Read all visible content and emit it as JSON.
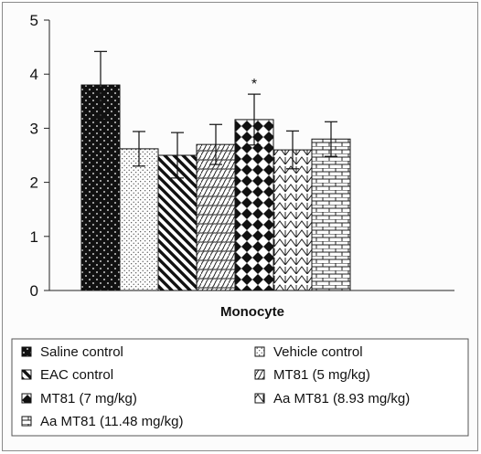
{
  "chart_data": {
    "type": "bar",
    "xlabel": "Monocyte",
    "ylabel": "",
    "ylim": [
      0,
      5
    ],
    "yticks": [
      "0",
      "1",
      "2",
      "3",
      "4",
      "5"
    ],
    "legend_position": "bottom",
    "series": [
      {
        "name": "Saline control",
        "value": 3.8,
        "error": 0.62,
        "pattern": "black-dots"
      },
      {
        "name": "Vehicle control",
        "value": 2.62,
        "error": 0.32,
        "pattern": "fine-dots"
      },
      {
        "name": "EAC control",
        "value": 2.5,
        "error": 0.42,
        "pattern": "wide-diagonal"
      },
      {
        "name": "MT81 (5 mg/kg)",
        "value": 2.7,
        "error": 0.37,
        "pattern": "wave"
      },
      {
        "name": "MT81 (7 mg/kg)",
        "value": 3.16,
        "error": 0.47,
        "pattern": "checker-diamond",
        "annotation": "*"
      },
      {
        "name": "Aa MT81 (8.93 mg/kg)",
        "value": 2.6,
        "error": 0.35,
        "pattern": "zigzag"
      },
      {
        "name": "Aa MT81 (11.48 mg/kg)",
        "value": 2.8,
        "error": 0.32,
        "pattern": "brick"
      }
    ]
  }
}
